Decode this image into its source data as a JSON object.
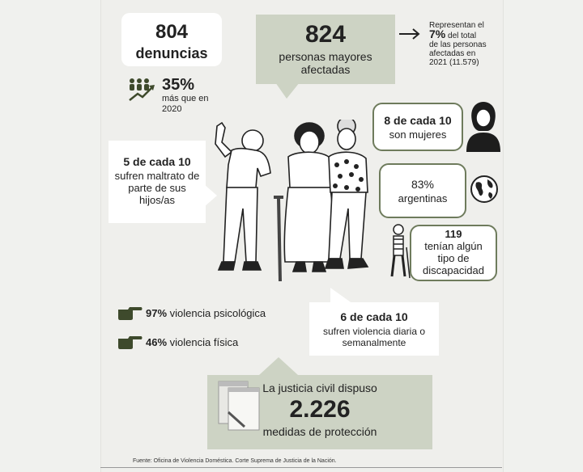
{
  "denuncias": {
    "value": "804",
    "label": "denuncias"
  },
  "afectadas": {
    "value": "824",
    "label_line1": "personas mayores",
    "label_line2": "afectadas"
  },
  "represent": {
    "line1": "Representan el",
    "pct": "7%",
    "line2": " del total",
    "line3": "de las personas",
    "line4": "afectadas en",
    "line5": "2021 (11.579)"
  },
  "increase": {
    "value": "35%",
    "line1": "más que en",
    "line2": "2020"
  },
  "mujeres": {
    "line1": "8 de cada 10",
    "line2": "son mujeres"
  },
  "maltrato": {
    "line1": "5 de cada 10",
    "line2": "sufren maltrato de",
    "line3": "parte de sus",
    "line4": "hijos/as"
  },
  "argentinas": {
    "value": "83%",
    "label": "argentinas"
  },
  "discapacidad": {
    "value": "119",
    "line1": "tenían algún",
    "line2": "tipo de",
    "line3": "discapacidad"
  },
  "violencia": [
    {
      "pct": "97%",
      "label": " violencia psicológica"
    },
    {
      "pct": "46%",
      "label": " violencia física"
    }
  ],
  "diaria": {
    "line1": "6 de cada 10",
    "line2": "sufren violencia diaria o",
    "line3": "semanalmente"
  },
  "justicia": {
    "line1": "La justicia civil dispuso",
    "value": "2.226",
    "line2": "medidas de protección"
  },
  "fuente": "Fuente: Oficina de Violencia Doméstica. Corte Suprema de Justicia de la Nación.",
  "colors": {
    "olive": "#6e7b5c",
    "green_box": "#cdd3c4",
    "hand": "#3e4a2c"
  }
}
